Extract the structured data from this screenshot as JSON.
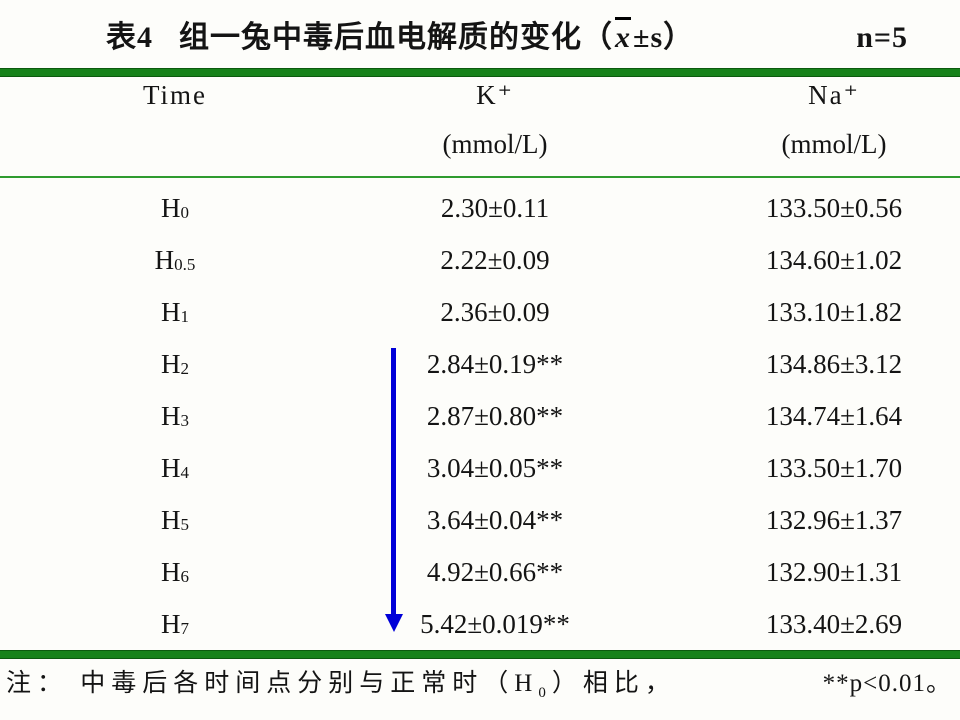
{
  "title": {
    "prefix": "表4",
    "main": "组一兔中毒后血电解质的变化（",
    "x": "x",
    "suffix": "±s）",
    "n": "n=5"
  },
  "table": {
    "header_time": "Time",
    "header_k": "K⁺",
    "header_k_unit": "(mmol/L)",
    "header_na": "Na⁺",
    "header_na_unit": "(mmol/L)",
    "rows": [
      {
        "t": "H",
        "tsub": "0",
        "k": "2.30±0.11",
        "na": "133.50±0.56"
      },
      {
        "t": "H",
        "tsub": "0.5",
        "k": "2.22±0.09",
        "na": "134.60±1.02"
      },
      {
        "t": "H",
        "tsub": "1",
        "k": "2.36±0.09",
        "na": "133.10±1.82"
      },
      {
        "t": "H",
        "tsub": "2",
        "k": "2.84±0.19**",
        "na": "134.86±3.12"
      },
      {
        "t": "H",
        "tsub": "3",
        "k": "2.87±0.80**",
        "na": "134.74±1.64"
      },
      {
        "t": "H",
        "tsub": "4",
        "k": "3.04±0.05**",
        "na": "133.50±1.70"
      },
      {
        "t": "H",
        "tsub": "5",
        "k": "3.64±0.04**",
        "na": "132.96±1.37"
      },
      {
        "t": "H",
        "tsub": "6",
        "k": "4.92±0.66**",
        "na": "132.90±1.31"
      },
      {
        "t": "H",
        "tsub": "7",
        "k": "5.42±0.019**",
        "na": "133.40±2.69"
      }
    ]
  },
  "note": {
    "part1": "注： 中毒后各时间点分别与正常时（H",
    "sub": "0",
    "part2": "）相比，",
    "pvalue": "**p<0.01。"
  },
  "arrow": {
    "meaning": "increasing K+ trend from H2 to H7",
    "color": "#0000d8"
  },
  "colors": {
    "rule_green_thick": "#17821a",
    "rule_green_thin": "#2e9b2e",
    "arrow_blue": "#0000d8",
    "background": "#fdfdfa",
    "text": "#141414"
  }
}
